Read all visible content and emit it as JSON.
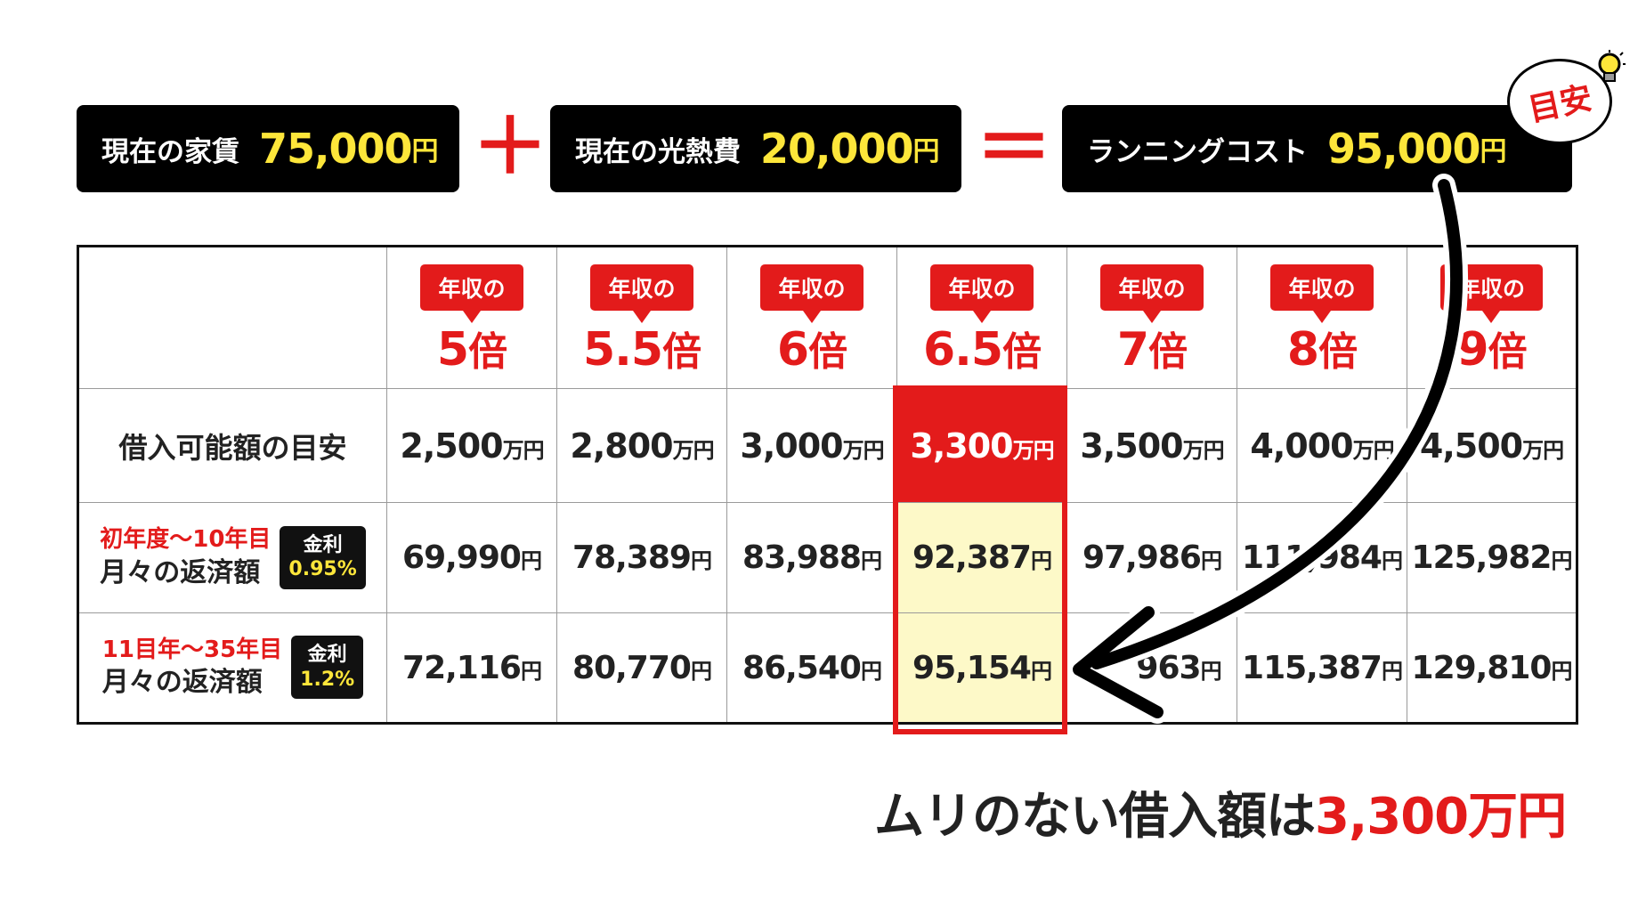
{
  "formula": {
    "rent": {
      "label": "現在の家賃",
      "amount": "75,000",
      "unit": "円"
    },
    "plus": "＋",
    "utility": {
      "label": "現在の光熱費",
      "amount": "20,000",
      "unit": "円"
    },
    "equals": "＝",
    "running": {
      "label": "ランニングコスト",
      "amount": "95,000",
      "unit": "円"
    }
  },
  "hint_label": "目安",
  "icons": {
    "bulb": "lightbulb-icon",
    "arrow": "curved-arrow-icon"
  },
  "colors": {
    "accent_red": "#e31b1b",
    "highlight_yellow": "#fdf9c8",
    "money_yellow": "#fde63a",
    "box_black": "#000000"
  },
  "table": {
    "header_tag": "年収の",
    "multiplier_suffix": "倍",
    "columns": [
      {
        "multiplier": "5",
        "loan": "2,500",
        "pay1": "69,990",
        "pay2": "72,116"
      },
      {
        "multiplier": "5.5",
        "loan": "2,800",
        "pay1": "78,389",
        "pay2": "80,770"
      },
      {
        "multiplier": "6",
        "loan": "3,000",
        "pay1": "83,988",
        "pay2": "86,540"
      },
      {
        "multiplier": "6.5",
        "loan": "3,300",
        "pay1": "92,387",
        "pay2": "95,154"
      },
      {
        "multiplier": "7",
        "loan": "3,500",
        "pay1": "97,986",
        "pay2": "963"
      },
      {
        "multiplier": "8",
        "loan": "4,000",
        "pay1": "111,984",
        "pay2": "115,387"
      },
      {
        "multiplier": "9",
        "loan": "4,500",
        "pay1": "125,982",
        "pay2": "129,810"
      }
    ],
    "highlight_index": 3,
    "loan_row_label": "借入可能額の目安",
    "loan_unit": "万円",
    "pay_unit": "円",
    "pay_row1": {
      "period": "初年度〜10年目",
      "label": "月々の返済額",
      "rate_label": "金利",
      "rate": "0.95%"
    },
    "pay_row2": {
      "period": "11目年〜35年目",
      "label": "月々の返済額",
      "rate_label": "金利",
      "rate": "1.2%"
    }
  },
  "conclusion": {
    "text": "ムリのない借入額は",
    "amount": "3,300万円"
  }
}
